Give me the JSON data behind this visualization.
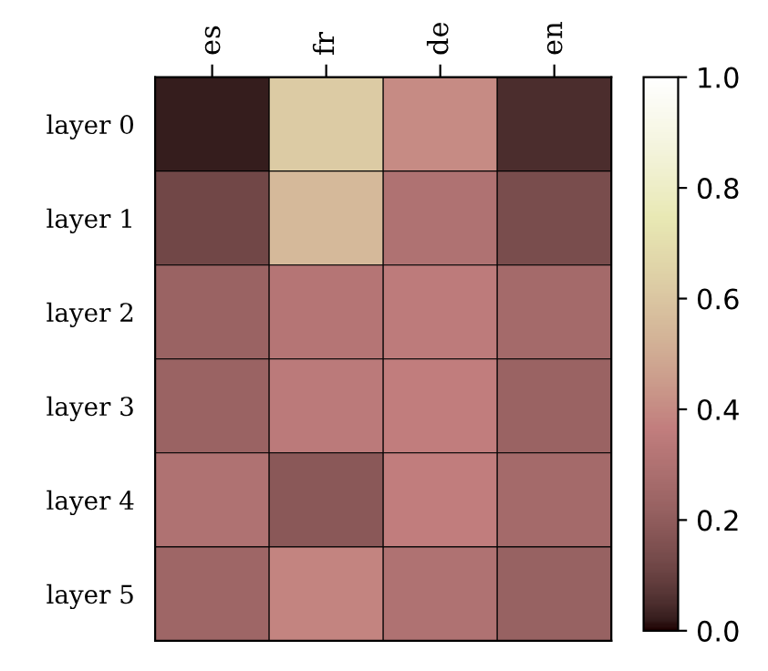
{
  "chart_data": {
    "type": "heatmap",
    "categories": [
      "es",
      "fr",
      "de",
      "en"
    ],
    "y_categories": [
      "layer 0",
      "layer 1",
      "layer 2",
      "layer 3",
      "layer 4",
      "layer 5"
    ],
    "cells": [
      [
        0.02,
        0.62,
        0.4,
        0.05
      ],
      [
        0.12,
        0.55,
        0.3,
        0.14
      ],
      [
        0.23,
        0.32,
        0.35,
        0.26
      ],
      [
        0.23,
        0.34,
        0.36,
        0.23
      ],
      [
        0.3,
        0.18,
        0.36,
        0.26
      ],
      [
        0.24,
        0.38,
        0.3,
        0.22
      ]
    ],
    "clim": [
      0,
      1
    ],
    "cticks": [
      {
        "value": 0,
        "label": "0.0"
      },
      0.2,
      0.4,
      0.6,
      0.8,
      {
        "value": 1,
        "label": "1.0"
      }
    ]
  }
}
